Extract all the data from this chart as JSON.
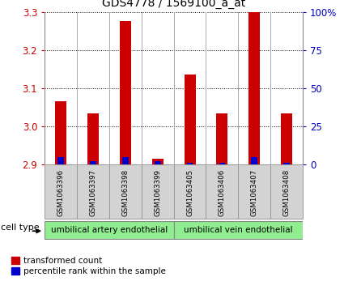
{
  "title": "GDS4778 / 1569100_a_at",
  "samples": [
    "GSM1063396",
    "GSM1063397",
    "GSM1063398",
    "GSM1063399",
    "GSM1063405",
    "GSM1063406",
    "GSM1063407",
    "GSM1063408"
  ],
  "red_values": [
    3.065,
    3.035,
    3.275,
    2.915,
    3.135,
    3.035,
    3.3,
    3.035
  ],
  "blue_values": [
    0.02,
    0.01,
    0.02,
    0.01,
    0.005,
    0.005,
    0.02,
    0.005
  ],
  "baseline": 2.9,
  "ylim_left": [
    2.9,
    3.3
  ],
  "ylim_right": [
    0,
    100
  ],
  "yticks_left": [
    2.9,
    3.0,
    3.1,
    3.2,
    3.3
  ],
  "yticks_right": [
    0,
    25,
    50,
    75,
    100
  ],
  "ytick_right_labels": [
    "0",
    "25",
    "50",
    "75",
    "100%"
  ],
  "cell_types": [
    {
      "label": "umbilical artery endothelial",
      "start": 0,
      "end": 3
    },
    {
      "label": "umbilical vein endothelial",
      "start": 4,
      "end": 7
    }
  ],
  "cell_type_label": "cell type",
  "legend_red": "transformed count",
  "legend_blue": "percentile rank within the sample",
  "bar_color_red": "#cc0000",
  "bar_color_blue": "#0000cc",
  "grid_color": "#000000",
  "bg_color": "#ffffff",
  "cell_type_bg": "#90ee90",
  "sample_box_bg": "#d3d3d3",
  "left_axis_color": "#cc0000",
  "right_axis_color": "#0000bb"
}
